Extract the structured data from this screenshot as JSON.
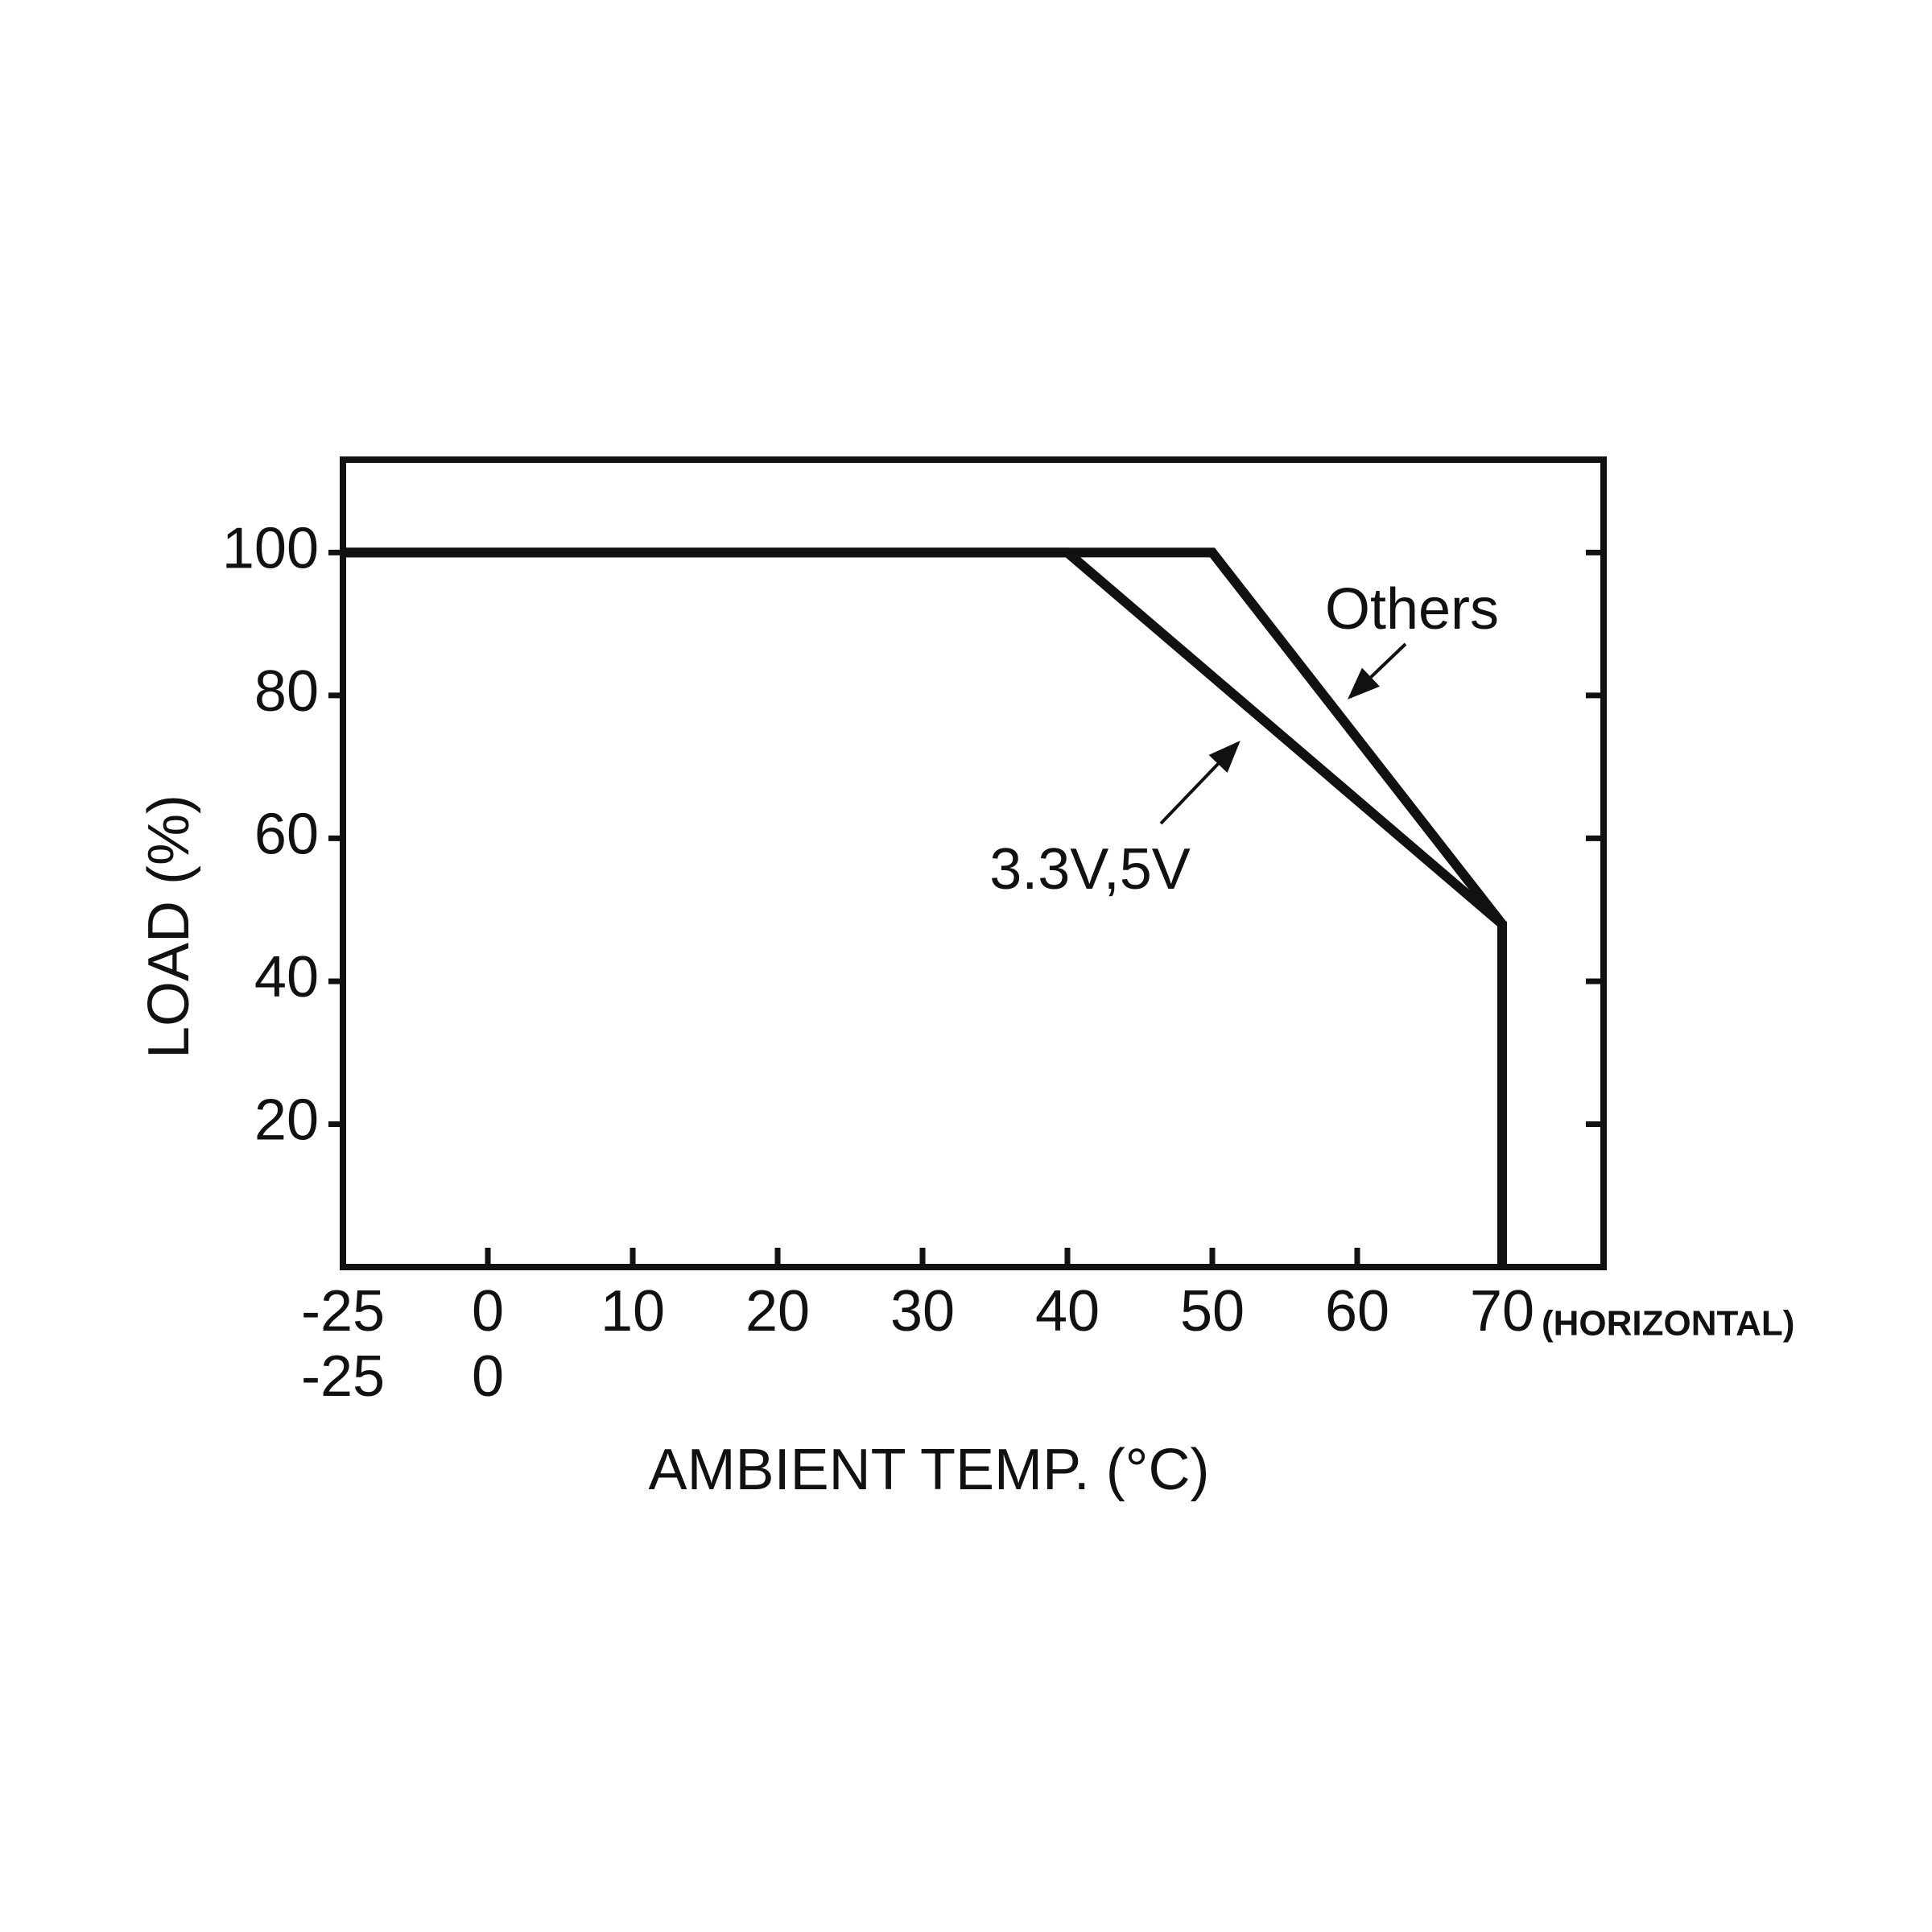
{
  "chart_data": {
    "type": "line",
    "x_title": "AMBIENT TEMP. (°C)",
    "y_title": "LOAD (%)",
    "x_note": "(HORIZONTAL)",
    "xlim": [
      -25,
      77
    ],
    "xticks": [
      -25,
      0,
      10,
      20,
      30,
      40,
      50,
      60,
      70
    ],
    "xticks_second_row": [
      -25,
      0
    ],
    "ylim": [
      0,
      113
    ],
    "yticks": [
      20,
      40,
      60,
      80,
      100
    ],
    "series": [
      {
        "name": "Others",
        "color": "#111111",
        "x": [
          -25,
          50,
          70,
          70
        ],
        "values": [
          100,
          100,
          48,
          0
        ]
      },
      {
        "name": "3.3V,5V",
        "color": "#111111",
        "x": [
          -25,
          40,
          70,
          70
        ],
        "values": [
          100,
          100,
          48,
          0
        ]
      }
    ]
  }
}
